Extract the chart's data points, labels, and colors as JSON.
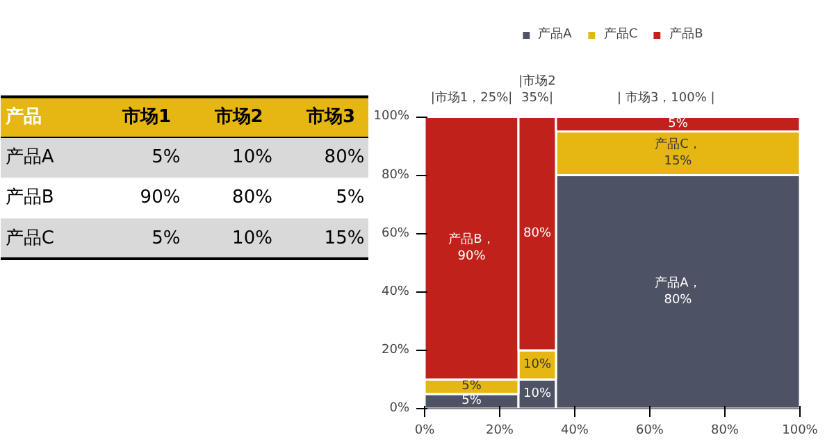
{
  "chart_data": [
    {
      "type": "other",
      "title": "产品",
      "categories": [
        "市场1",
        "市场2",
        "市场3"
      ],
      "y_categories": [
        "产品A",
        "产品B",
        "产品C"
      ],
      "cell_labels": [
        [
          "5%",
          "10%",
          "80%"
        ],
        [
          "90%",
          "80%",
          "5%"
        ],
        [
          "5%",
          "10%",
          "15%"
        ]
      ]
    },
    {
      "type": "bar",
      "stacked": true,
      "annotations": [
        "|市场1，25%|",
        "|市场2\n35%|",
        "|    市场3，100%    |"
      ],
      "x": [
        12.5,
        30,
        67.5
      ],
      "xlim": [
        0,
        100
      ],
      "ylim": [
        0,
        100
      ],
      "legend": "top",
      "xticks": [
        {
          "value": 0,
          "label": "0%"
        },
        {
          "value": 20,
          "label": "20%"
        },
        {
          "value": 40,
          "label": "40%"
        },
        {
          "value": 60,
          "label": "60%"
        },
        {
          "value": 80,
          "label": "80%"
        },
        {
          "value": 100,
          "label": "100%"
        }
      ],
      "yticks": [
        {
          "value": 0,
          "label": "0%"
        },
        {
          "value": 20,
          "label": "20%"
        },
        {
          "value": 40,
          "label": "40%"
        },
        {
          "value": 60,
          "label": "60%"
        },
        {
          "value": 80,
          "label": "80%"
        },
        {
          "value": 100,
          "label": "100%"
        }
      ],
      "series": [
        {
          "name": "产品A",
          "color": "#4d5264",
          "values": [
            5,
            10,
            80
          ],
          "value_labels": [
            "5%",
            "10%",
            "产品A，\n80%"
          ]
        },
        {
          "name": "产品C",
          "color": "#e6b713",
          "values": [
            5,
            10,
            15
          ],
          "value_labels": [
            "5%",
            "10%",
            "产品C，\n15%"
          ]
        },
        {
          "name": "产品B",
          "color": "#c0211a",
          "values": [
            90,
            80,
            5
          ],
          "value_labels": [
            "产品B，\n90%",
            "80%",
            "5%"
          ]
        }
      ]
    }
  ]
}
